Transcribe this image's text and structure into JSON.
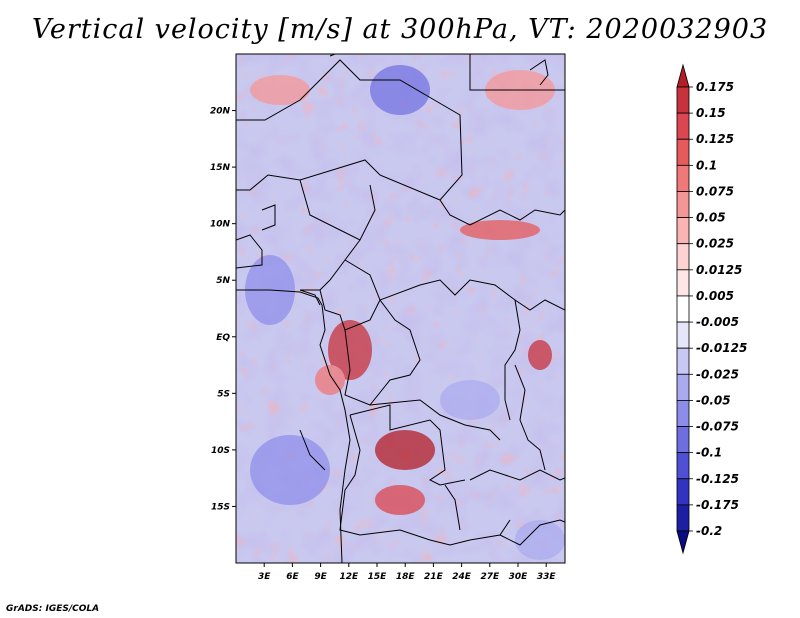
{
  "title": "Vertical velocity [m/s] at 300hPa, VT: 2020032903",
  "footer": "GrADS: IGES/COLA",
  "chart_data": {
    "type": "heatmap",
    "title": "Vertical velocity [m/s] at 300hPa, VT: 2020032903",
    "variable": "Vertical velocity",
    "units": "m/s",
    "level": "300hPa",
    "valid_time": "2020032903",
    "lon_range": [
      0,
      35
    ],
    "lat_range": [
      -20,
      25
    ],
    "x_ticks": [
      3,
      6,
      9,
      12,
      15,
      18,
      21,
      24,
      27,
      30,
      33
    ],
    "x_tick_labels": [
      "3E",
      "6E",
      "9E",
      "12E",
      "15E",
      "18E",
      "21E",
      "24E",
      "27E",
      "30E",
      "33E"
    ],
    "y_ticks": [
      20,
      15,
      10,
      5,
      0,
      -5,
      -10,
      -15
    ],
    "y_tick_labels": [
      "20N",
      "15N",
      "10N",
      "5N",
      "EQ",
      "5S",
      "10S",
      "15S"
    ],
    "colorbar": {
      "levels": [
        "0.175",
        "0.15",
        "0.125",
        "0.1",
        "0.075",
        "0.05",
        "0.025",
        "0.0125",
        "0.005",
        "-0.005",
        "-0.0125",
        "-0.025",
        "-0.05",
        "-0.075",
        "-0.1",
        "-0.125",
        "-0.175",
        "-0.2"
      ],
      "colors": [
        "#b41e28",
        "#c8323c",
        "#dc4650",
        "#e65a5a",
        "#f07878",
        "#f59696",
        "#fab4b4",
        "#fcd2d2",
        "#fee6e6",
        "#ffffff",
        "#e6e6fa",
        "#c8c8f5",
        "#aaaaf0",
        "#8c8ceb",
        "#6e6ee1",
        "#5050d7",
        "#3232c3",
        "#1e1ea5",
        "#0a0a82"
      ]
    }
  }
}
